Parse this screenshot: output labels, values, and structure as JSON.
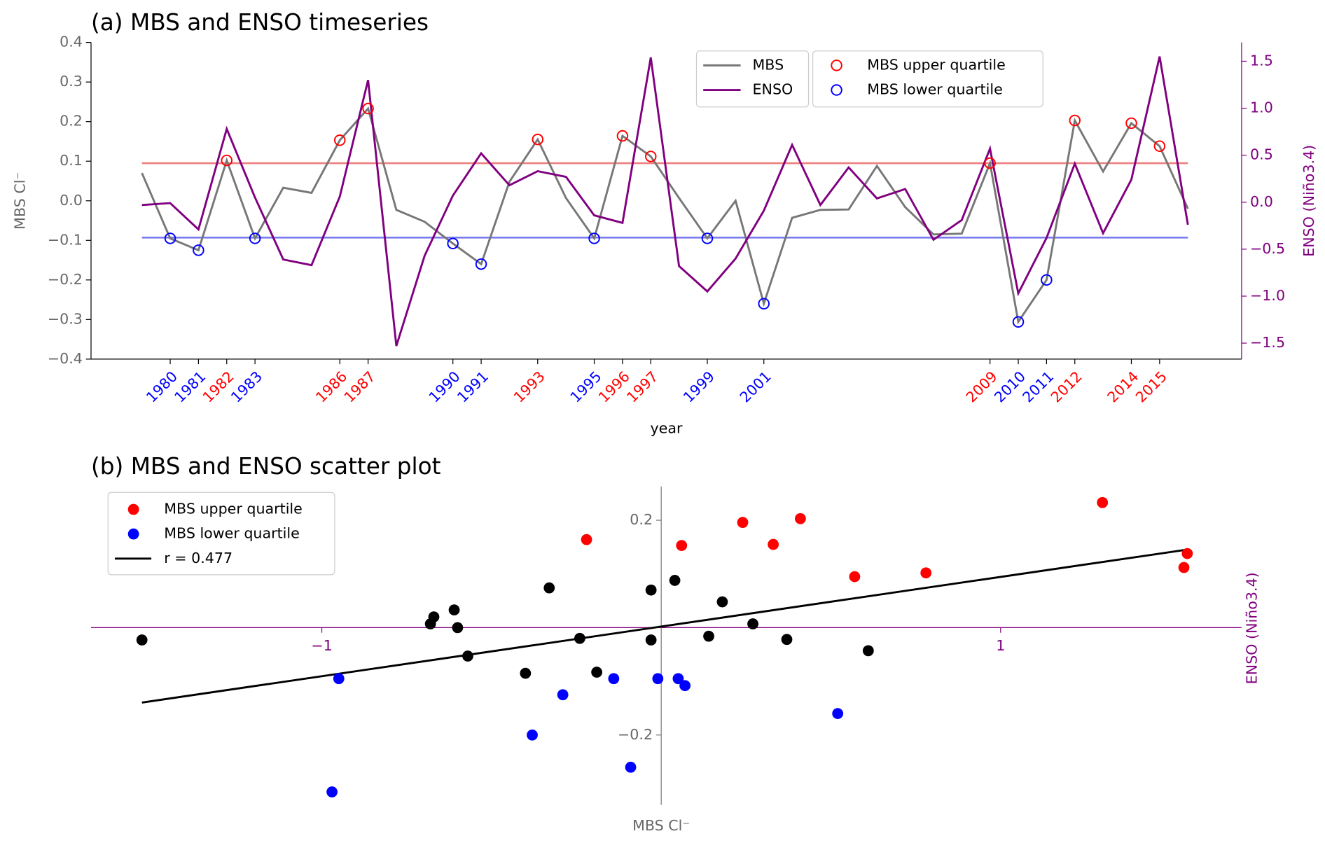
{
  "chart_data": [
    {
      "type": "line",
      "title": "(a) MBS and ENSO timeseries",
      "xlabel": "year",
      "ylabel": "MBS Cl⁻",
      "y2label": "ENSO (Niño3.4)",
      "x": [
        1979,
        1980,
        1981,
        1982,
        1983,
        1984,
        1985,
        1986,
        1987,
        1988,
        1989,
        1990,
        1991,
        1992,
        1993,
        1994,
        1995,
        1996,
        1997,
        1998,
        1999,
        2000,
        2001,
        2002,
        2003,
        2004,
        2005,
        2006,
        2007,
        2008,
        2009,
        2010,
        2011,
        2012,
        2013,
        2014,
        2015,
        2016
      ],
      "series": [
        {
          "name": "MBS",
          "color": "#777777",
          "values": [
            0.07,
            -0.095,
            -0.125,
            0.102,
            -0.095,
            0.033,
            0.02,
            0.153,
            0.233,
            -0.023,
            -0.053,
            -0.108,
            -0.16,
            0.048,
            0.155,
            0.007,
            -0.095,
            0.164,
            0.112,
            0.007,
            -0.095,
            0.0,
            -0.26,
            -0.043,
            -0.023,
            -0.022,
            0.088,
            -0.016,
            -0.085,
            -0.083,
            0.095,
            -0.306,
            -0.2,
            0.203,
            0.074,
            0.196,
            0.138,
            -0.02
          ]
        },
        {
          "name": "ENSO",
          "color": "#800080",
          "axis": "y2",
          "values": [
            -0.03,
            -0.01,
            -0.29,
            0.78,
            0.05,
            -0.61,
            -0.67,
            0.06,
            1.3,
            -1.53,
            -0.57,
            0.07,
            0.52,
            0.18,
            0.33,
            0.27,
            -0.14,
            -0.22,
            1.54,
            -0.68,
            -0.95,
            -0.6,
            -0.09,
            0.61,
            -0.03,
            0.37,
            0.04,
            0.14,
            -0.4,
            -0.19,
            0.57,
            -0.97,
            -0.38,
            0.41,
            -0.33,
            0.24,
            1.55,
            -0.24
          ]
        }
      ],
      "markers": [
        {
          "name": "MBS upper quartile",
          "color": "red",
          "line_color": "#f08080",
          "threshold": 0.095,
          "years": [
            1982,
            1986,
            1987,
            1993,
            1996,
            1997,
            2009,
            2012,
            2014,
            2015
          ]
        },
        {
          "name": "MBS lower quartile",
          "color": "blue",
          "line_color": "#7b7bf0",
          "threshold": -0.093,
          "years": [
            1980,
            1981,
            1983,
            1990,
            1991,
            1995,
            1999,
            2001,
            2010,
            2011
          ]
        }
      ],
      "xlim": [
        1977.2,
        2017.9
      ],
      "xticks": [
        1980,
        1981,
        1982,
        1983,
        1986,
        1987,
        1990,
        1991,
        1993,
        1995,
        1996,
        1997,
        1999,
        2001,
        2009,
        2010,
        2011,
        2012,
        2014,
        2015
      ],
      "ylim": [
        -0.4,
        0.4
      ],
      "yticks": [
        {
          "value": -0.4,
          "label": "−0.4"
        },
        {
          "value": -0.3,
          "label": "−0.3"
        },
        {
          "value": -0.2,
          "label": "−0.2"
        },
        {
          "value": -0.1,
          "label": "−0.1"
        },
        {
          "value": 0,
          "label": "0.0"
        },
        0.1,
        0.2,
        0.3,
        0.4
      ],
      "y2lim": [
        -1.67,
        1.7
      ],
      "y2ticks": [
        {
          "value": -1.5,
          "label": "−1.5"
        },
        {
          "value": -1,
          "label": "−1.0"
        },
        {
          "value": -0.5,
          "label": "−0.5"
        },
        {
          "value": 0,
          "label": "0.0"
        },
        0.5,
        {
          "value": 1,
          "label": "1.0"
        },
        1.5
      ]
    },
    {
      "type": "scatter",
      "title": "(b) MBS and ENSO scatter plot",
      "xlabel": "ENSO (Niño3.4)",
      "ylabel": "MBS Cl⁻",
      "xlim": [
        -1.68,
        1.71
      ],
      "xticks": [
        {
          "value": -1,
          "label": "−1"
        },
        1
      ],
      "ylim": [
        -0.33,
        0.263
      ],
      "yticks": [
        {
          "value": -0.2,
          "label": "−0.2"
        },
        0.2
      ],
      "groups": [
        {
          "name": "MBS upper quartile",
          "color": "red"
        },
        {
          "name": "MBS lower quartile",
          "color": "blue"
        }
      ],
      "other_color": "black",
      "fit": {
        "label": "r = 0.477",
        "slope": 0.0925,
        "intercept": 0.002,
        "color": "black"
      }
    }
  ]
}
